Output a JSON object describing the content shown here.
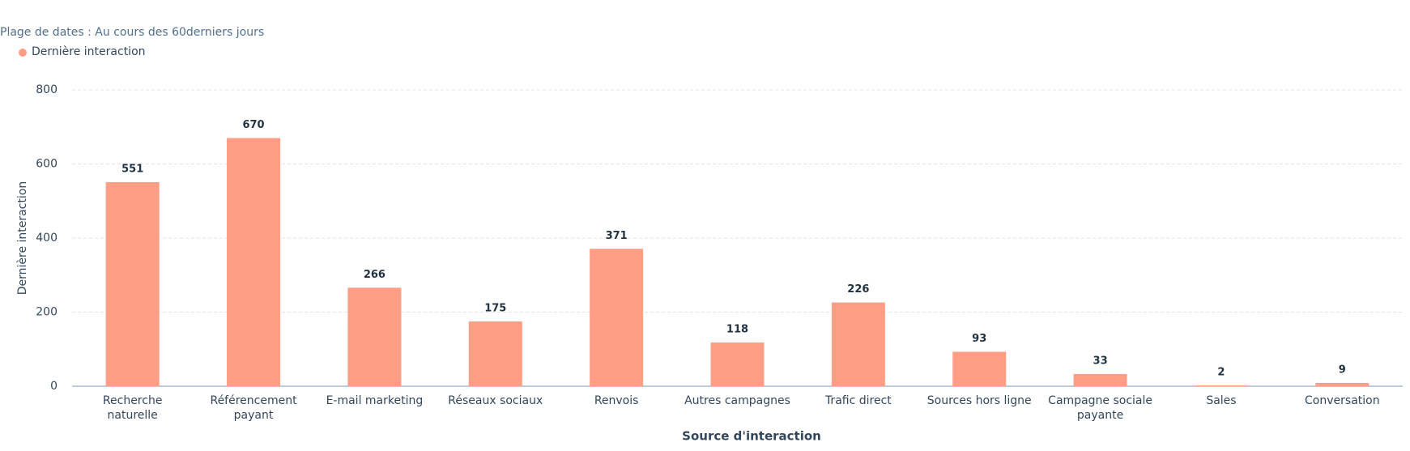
{
  "chart_data": {
    "type": "bar",
    "subtitle": "Plage de dates : Au cours des 60derniers jours",
    "legend": "top-left",
    "series": [
      {
        "name": "Dernière interaction",
        "color": "#ff9d85",
        "values": [
          551,
          670,
          266,
          175,
          371,
          118,
          226,
          93,
          33,
          2,
          9
        ]
      }
    ],
    "categories": [
      "Recherche naturelle",
      "Référencement payant",
      "E-mail marketing",
      "Réseaux sociaux",
      "Renvois",
      "Autres campagnes",
      "Trafic direct",
      "Sources hors ligne",
      "Campagne sociale payante",
      "Sales",
      "Conversation"
    ],
    "x_label": "Source d'interaction",
    "y_label": "Dernière interaction",
    "ylim": [
      0,
      800
    ],
    "yticks": [
      0,
      200,
      400,
      600,
      800
    ],
    "grid": true
  }
}
